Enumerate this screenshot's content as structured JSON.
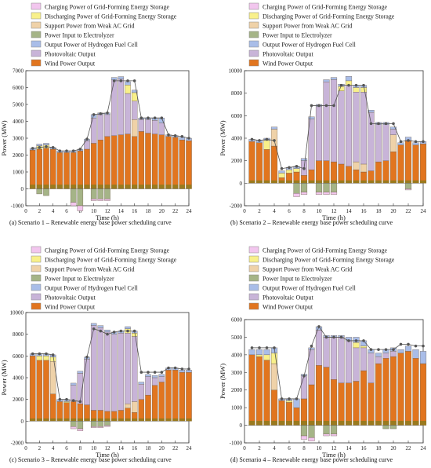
{
  "legend_colors": {
    "Charging Power of Grid-Forming Energy Storage": "#f2c6ee",
    "Discharging Power of Grid-Forming Energy Storage": "#f8f08a",
    "Support Power from Weak AC Grid": "#efd2a8",
    "Power Input to Electrolyzer": "#a5b487",
    "Output Power of Hydrogen Fuel Cell": "#a9bde8",
    "Photovoltaic Output": "#c8b4d8",
    "Wind Power Output": "#e1751f",
    "base": "#9a7a1e",
    "marker": "#555555"
  },
  "chart_data": [
    {
      "type": "bar",
      "caption": "(a) Scenario 1 – Renewable energy base power scheduling curve",
      "xlabel": "Time (h)",
      "ylabel": "Power (MW)",
      "xlim": [
        0,
        24
      ],
      "ylim": [
        -1000,
        7000
      ],
      "yticks": [
        -1000,
        0,
        1000,
        2000,
        3000,
        4000,
        5000,
        6000,
        7000
      ],
      "xticks": [
        0,
        2,
        4,
        6,
        8,
        10,
        12,
        14,
        16,
        18,
        20,
        22,
        24
      ],
      "legend": [
        "Charging Power of Grid-Forming Energy Storage",
        "Discharging Power of Grid-Forming Energy Storage",
        "Support Power from Weak AC Grid",
        "Power Input to Electrolyzer",
        "Output Power of Hydrogen Fuel Cell",
        "Photovoltaic Output",
        "Wind Power Output"
      ],
      "hours": [
        1,
        2,
        3,
        4,
        5,
        6,
        7,
        8,
        9,
        10,
        11,
        12,
        13,
        14,
        15,
        16,
        17,
        18,
        19,
        20,
        21,
        22,
        23,
        24
      ],
      "wind": [
        2300,
        2350,
        2400,
        2350,
        2150,
        2150,
        2150,
        2250,
        2350,
        2700,
        2900,
        3100,
        3150,
        3200,
        3250,
        3100,
        3400,
        3300,
        3250,
        3200,
        3100,
        3050,
        2900,
        2850
      ],
      "pv": [
        0,
        0,
        0,
        0,
        0,
        0,
        0,
        0,
        500,
        1500,
        1500,
        1300,
        3300,
        3300,
        2400,
        1100,
        700,
        800,
        800,
        700,
        0,
        0,
        0,
        0
      ],
      "weak_ac": [
        0,
        0,
        0,
        0,
        0,
        0,
        0,
        0,
        0,
        0,
        0,
        0,
        0,
        0,
        0,
        1000,
        0,
        0,
        0,
        0,
        0,
        0,
        0,
        0
      ],
      "fuel_cell": [
        100,
        100,
        100,
        100,
        100,
        100,
        100,
        100,
        100,
        200,
        100,
        100,
        150,
        150,
        200,
        150,
        100,
        100,
        150,
        300,
        100,
        100,
        150,
        150
      ],
      "discharge": [
        0,
        200,
        200,
        0,
        0,
        0,
        0,
        0,
        0,
        0,
        0,
        0,
        0,
        0,
        500,
        500,
        0,
        0,
        0,
        0,
        0,
        0,
        0,
        0
      ],
      "electrolyzer": [
        0,
        -300,
        -400,
        0,
        0,
        0,
        -800,
        -1000,
        0,
        -600,
        -600,
        -600,
        0,
        0,
        0,
        0,
        0,
        0,
        0,
        0,
        0,
        0,
        0,
        0
      ],
      "charging": [
        0,
        0,
        0,
        0,
        0,
        0,
        -200,
        -300,
        0,
        -100,
        -100,
        -100,
        0,
        0,
        0,
        0,
        0,
        0,
        0,
        0,
        0,
        0,
        0,
        0
      ],
      "load": [
        2400,
        2450,
        2500,
        2450,
        2250,
        2250,
        2250,
        2350,
        2950,
        4400,
        4450,
        4500,
        6400,
        6400,
        6400,
        6400,
        4200,
        4200,
        4200,
        4200,
        3200,
        3150,
        3100,
        3000
      ]
    },
    {
      "type": "bar",
      "caption": "(b) Scenario 2 – Renewable energy base power scheduling curve",
      "xlabel": "Time (h)",
      "ylabel": "Power (MW)",
      "xlim": [
        0,
        24
      ],
      "ylim": [
        -2000,
        10000
      ],
      "yticks": [
        -2000,
        0,
        2000,
        4000,
        6000,
        8000,
        10000
      ],
      "xticks": [
        0,
        2,
        4,
        6,
        8,
        10,
        12,
        14,
        16,
        18,
        20,
        22,
        24
      ],
      "legend": [
        "Charging Power of Grid-Forming Energy Storage",
        "Discharging Power of Grid-Forming Energy Storage",
        "Support Power from Weak AC Grid",
        "Power Input to Electrolyzer",
        "Output Power of Hydrogen Fuel Cell",
        "Photovoltaic Output",
        "Wind Power Output"
      ],
      "hours": [
        1,
        2,
        3,
        4,
        5,
        6,
        7,
        8,
        9,
        10,
        11,
        12,
        13,
        14,
        15,
        16,
        17,
        18,
        19,
        20,
        21,
        22,
        23,
        24
      ],
      "wind": [
        3700,
        3600,
        3000,
        3300,
        500,
        900,
        1000,
        700,
        1200,
        2000,
        2000,
        1900,
        1700,
        1500,
        1200,
        1000,
        1100,
        1900,
        2000,
        2800,
        3400,
        3800,
        3400,
        3500
      ],
      "pv": [
        0,
        0,
        0,
        0,
        0,
        0,
        0,
        1300,
        4500,
        4800,
        7000,
        7300,
        6500,
        7200,
        6200,
        6400,
        5200,
        3300,
        3200,
        500,
        0,
        0,
        0,
        0
      ],
      "weak_ac": [
        0,
        0,
        0,
        1500,
        0,
        0,
        0,
        0,
        0,
        0,
        0,
        0,
        0,
        0,
        700,
        700,
        0,
        0,
        0,
        1500,
        0,
        0,
        0,
        0
      ],
      "fuel_cell": [
        200,
        200,
        200,
        200,
        200,
        200,
        200,
        200,
        200,
        200,
        200,
        200,
        200,
        400,
        200,
        200,
        200,
        200,
        200,
        200,
        200,
        300,
        200,
        200
      ],
      "discharge": [
        0,
        0,
        800,
        0,
        400,
        300,
        300,
        0,
        0,
        0,
        0,
        0,
        400,
        400,
        400,
        400,
        0,
        0,
        0,
        0,
        0,
        0,
        0,
        0
      ],
      "electrolyzer": [
        0,
        0,
        0,
        0,
        0,
        0,
        -900,
        -800,
        0,
        -800,
        -800,
        -800,
        0,
        0,
        0,
        0,
        0,
        0,
        0,
        0,
        0,
        -500,
        0,
        0
      ],
      "charging": [
        0,
        0,
        0,
        0,
        0,
        0,
        -300,
        -200,
        0,
        -200,
        -200,
        -200,
        0,
        0,
        0,
        0,
        0,
        0,
        0,
        0,
        0,
        -100,
        0,
        0
      ],
      "load": [
        3900,
        3800,
        3900,
        3800,
        1300,
        1400,
        1500,
        1300,
        6900,
        6900,
        6900,
        6900,
        8700,
        8700,
        8700,
        8700,
        5300,
        5300,
        5300,
        5300,
        3700,
        3800,
        3700,
        3700
      ]
    },
    {
      "type": "bar",
      "caption": "(c) Scenario 3 – Renewable energy base power scheduling curve",
      "xlabel": "Time (h)",
      "ylabel": "Power (MW)",
      "xlim": [
        0,
        24
      ],
      "ylim": [
        -2000,
        10000
      ],
      "yticks": [
        -2000,
        0,
        2000,
        4000,
        6000,
        8000,
        10000
      ],
      "xticks": [
        0,
        2,
        4,
        6,
        8,
        10,
        12,
        14,
        16,
        18,
        20,
        22,
        24
      ],
      "legend": [
        "Charging Power of Grid-Forming Energy Storage",
        "Discharging Power of Grid-Forming Energy Storage",
        "Support Power from Weak AC Grid",
        "Power Input to Electrolyzer",
        "Output Power of Hydrogen Fuel Cell",
        "Photovoltaic Output",
        "Wind Power Output"
      ],
      "hours": [
        1,
        2,
        3,
        4,
        5,
        6,
        7,
        8,
        9,
        10,
        11,
        12,
        13,
        14,
        15,
        16,
        17,
        18,
        19,
        20,
        21,
        22,
        23,
        24
      ],
      "wind": [
        6000,
        5600,
        5600,
        2500,
        1800,
        1700,
        1800,
        1600,
        1500,
        1000,
        1000,
        900,
        900,
        1000,
        1200,
        800,
        2000,
        2400,
        3300,
        3600,
        4700,
        4700,
        4500,
        4500
      ],
      "pv": [
        0,
        0,
        0,
        0,
        0,
        0,
        1500,
        2800,
        4200,
        7800,
        7600,
        7300,
        7100,
        7100,
        6500,
        6000,
        1400,
        1700,
        700,
        500,
        0,
        0,
        0,
        0
      ],
      "weak_ac": [
        0,
        0,
        0,
        3000,
        0,
        0,
        0,
        0,
        0,
        0,
        0,
        0,
        0,
        0,
        400,
        1000,
        0,
        0,
        0,
        0,
        0,
        0,
        0,
        0
      ],
      "fuel_cell": [
        200,
        200,
        200,
        200,
        200,
        200,
        200,
        200,
        200,
        200,
        200,
        200,
        200,
        200,
        200,
        200,
        200,
        200,
        200,
        200,
        200,
        200,
        200,
        200
      ],
      "discharge": [
        0,
        400,
        400,
        400,
        0,
        100,
        0,
        0,
        0,
        0,
        0,
        0,
        0,
        0,
        400,
        300,
        0,
        0,
        0,
        0,
        0,
        0,
        0,
        0
      ],
      "electrolyzer": [
        0,
        0,
        0,
        0,
        0,
        0,
        -500,
        -700,
        0,
        -500,
        -500,
        -400,
        0,
        0,
        0,
        0,
        0,
        0,
        0,
        0,
        0,
        0,
        0,
        0
      ],
      "charging": [
        0,
        0,
        0,
        0,
        0,
        0,
        -200,
        -200,
        0,
        -100,
        -100,
        -100,
        0,
        0,
        0,
        0,
        0,
        0,
        0,
        0,
        0,
        0,
        0,
        0
      ],
      "load": [
        6200,
        6200,
        6200,
        6100,
        2000,
        2000,
        1900,
        1800,
        5900,
        8500,
        8300,
        8000,
        8200,
        8300,
        8300,
        8300,
        4500,
        4500,
        4500,
        4500,
        4900,
        4900,
        4800,
        4800
      ]
    },
    {
      "type": "bar",
      "caption": "(d) Scenario 4 – Renewable energy base power scheduling curve",
      "xlabel": "Time (h)",
      "ylabel": "Power (MW)",
      "xlim": [
        0,
        24
      ],
      "ylim": [
        -1000,
        6000
      ],
      "yticks": [
        -1000,
        0,
        1000,
        2000,
        3000,
        4000,
        5000,
        6000
      ],
      "xticks": [
        0,
        2,
        4,
        6,
        8,
        10,
        12,
        14,
        16,
        18,
        20,
        22,
        24
      ],
      "legend": [
        "Charging Power of Grid-Forming Energy Storage",
        "Discharging Power of Grid-Forming Energy Storage",
        "Support Power from Weak AC Grid",
        "Power Input to Electrolyzer",
        "Output Power of Hydrogen Fuel Cell",
        "Photovoltaic Output",
        "Wind Power Output"
      ],
      "hours": [
        1,
        2,
        3,
        4,
        5,
        6,
        7,
        8,
        9,
        10,
        11,
        12,
        13,
        14,
        15,
        16,
        17,
        18,
        19,
        20,
        21,
        22,
        23,
        24
      ],
      "wind": [
        4000,
        3900,
        3700,
        2000,
        1400,
        1300,
        1000,
        1500,
        2300,
        3400,
        3300,
        2600,
        2400,
        2400,
        2500,
        3100,
        2400,
        3500,
        3800,
        3900,
        4100,
        4200,
        3800,
        3500
      ],
      "pv": [
        0,
        0,
        0,
        0,
        0,
        0,
        0,
        1300,
        2000,
        2000,
        1700,
        2400,
        2600,
        2400,
        1900,
        1300,
        1700,
        400,
        300,
        300,
        0,
        0,
        0,
        0
      ],
      "weak_ac": [
        0,
        0,
        0,
        1500,
        0,
        0,
        0,
        0,
        0,
        0,
        0,
        0,
        0,
        0,
        0,
        0,
        0,
        0,
        0,
        0,
        0,
        0,
        0,
        0
      ],
      "fuel_cell": [
        300,
        300,
        300,
        300,
        100,
        100,
        500,
        100,
        100,
        200,
        100,
        100,
        100,
        200,
        300,
        300,
        200,
        200,
        200,
        200,
        200,
        300,
        500,
        700
      ],
      "discharge": [
        0,
        100,
        300,
        600,
        0,
        100,
        0,
        0,
        0,
        0,
        0,
        0,
        0,
        0,
        300,
        100,
        0,
        0,
        0,
        0,
        0,
        0,
        0,
        0
      ],
      "electrolyzer": [
        0,
        0,
        0,
        0,
        0,
        0,
        0,
        -600,
        -700,
        0,
        -500,
        -500,
        0,
        0,
        0,
        0,
        0,
        0,
        -200,
        -200,
        0,
        0,
        0,
        0
      ],
      "charging": [
        0,
        0,
        0,
        0,
        0,
        0,
        0,
        -200,
        -200,
        0,
        -100,
        -100,
        0,
        0,
        0,
        0,
        0,
        0,
        0,
        0,
        0,
        0,
        0,
        0
      ],
      "load": [
        4400,
        4400,
        4400,
        4400,
        1500,
        1500,
        1500,
        2800,
        4500,
        5600,
        5000,
        5000,
        5000,
        4800,
        4800,
        4800,
        4300,
        4300,
        4300,
        4300,
        4600,
        4600,
        4500,
        4500
      ]
    }
  ]
}
